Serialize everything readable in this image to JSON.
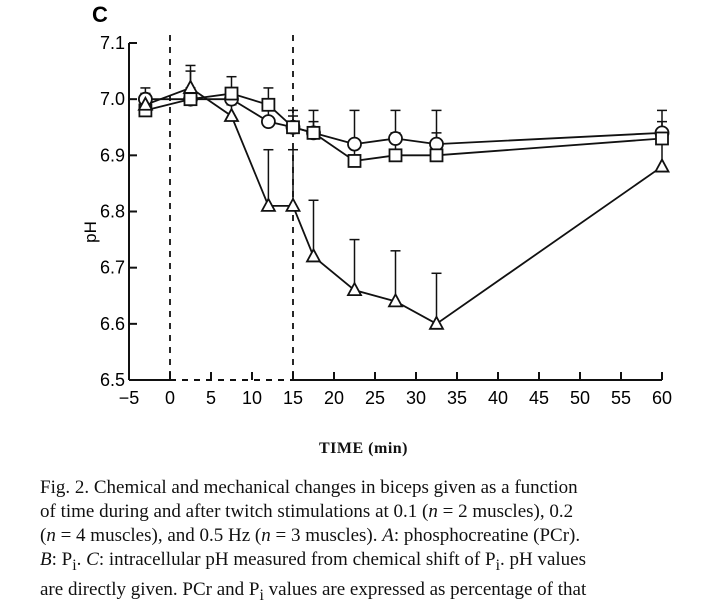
{
  "figure": {
    "panel_letter": "C",
    "xlabel_text": "TIME  (min)"
  },
  "chart_data": {
    "type": "line",
    "title": "",
    "xlabel": "TIME (min)",
    "ylabel": "pH",
    "xlim": [
      -5,
      60
    ],
    "ylim": [
      6.5,
      7.1
    ],
    "xticks": [
      -5,
      0,
      5,
      10,
      15,
      20,
      25,
      30,
      35,
      40,
      45,
      50,
      55,
      60
    ],
    "yticks": [
      6.5,
      6.6,
      6.7,
      6.8,
      6.9,
      7.0,
      7.1
    ],
    "ytick_labels": [
      "6.5",
      "6.6",
      "6.7",
      "6.8",
      "6.9",
      "7.0",
      "7.1"
    ],
    "stimulation_window": [
      0,
      15
    ],
    "series": [
      {
        "marker": "circle",
        "x": [
          -3,
          2.5,
          7.5,
          12,
          15,
          17.5,
          22.5,
          27.5,
          32.5,
          60
        ],
        "y": [
          7.0,
          7.0,
          7.0,
          6.96,
          6.95,
          6.94,
          6.92,
          6.93,
          6.92,
          6.94
        ],
        "err": [
          0.02,
          0.02,
          0.02,
          0.02,
          0.02,
          0.02,
          0.06,
          0.05,
          0.06,
          0.04
        ]
      },
      {
        "marker": "square",
        "x": [
          -3,
          2.5,
          7.5,
          12,
          15,
          17.5,
          22.5,
          27.5,
          32.5,
          60
        ],
        "y": [
          6.98,
          7.0,
          7.01,
          6.99,
          6.95,
          6.94,
          6.89,
          6.9,
          6.9,
          6.93
        ],
        "err": [
          0.03,
          0.05,
          0.03,
          0.03,
          0.03,
          0.04,
          0.03,
          0.04,
          0.04,
          0.03
        ]
      },
      {
        "marker": "triangle",
        "x": [
          -3,
          2.5,
          7.5,
          12,
          15,
          17.5,
          22.5,
          27.5,
          32.5,
          60
        ],
        "y": [
          6.99,
          7.02,
          6.97,
          6.81,
          6.81,
          6.72,
          6.66,
          6.64,
          6.6,
          6.88
        ],
        "err": [
          0.02,
          0.04,
          0.02,
          0.1,
          0.1,
          0.1,
          0.09,
          0.09,
          0.09,
          0.04
        ]
      }
    ]
  },
  "caption": {
    "l1": "Fig. 2.  Chemical and mechanical changes in biceps given as a function",
    "l2a": "of time during and after twitch stimulations at 0.1 (",
    "l2n1": "n",
    "l2b": " = 2 muscles), 0.2",
    "l3a": "(",
    "l3n": "n",
    "l3b": " = 4 muscles), and 0.5 Hz (",
    "l3n2": "n",
    "l3c": " = 3 muscles). ",
    "l3A": "A",
    "l3d": ": phosphocreatine (PCr).",
    "l4B": "B",
    "l4a": ": P",
    "l4sub1": "i",
    "l4b": ". ",
    "l4C": "C",
    "l4c": ": intracellular pH measured from chemical shift of P",
    "l4sub2": "i",
    "l4d": ". pH values",
    "l5a": "are directly given. PCr and P",
    "l5sub": "i",
    "l5b": " values are expressed as percentage of that"
  }
}
